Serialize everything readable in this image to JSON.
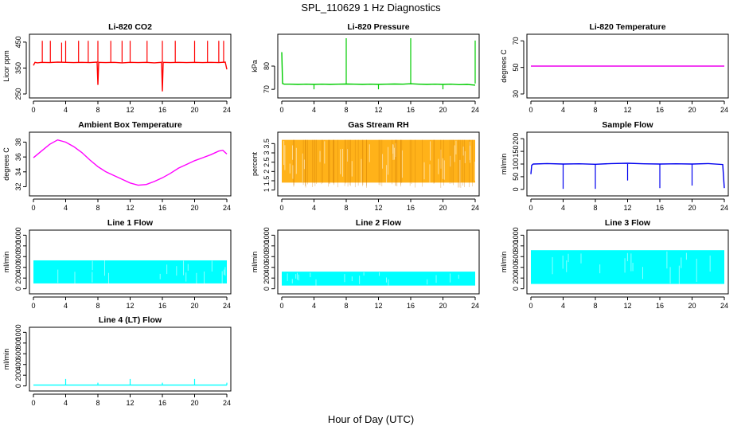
{
  "figure": {
    "title": "SPL_110629  1 Hz Diagnostics",
    "xlabel": "Hour of Day (UTC)"
  },
  "chart_data": [
    {
      "type": "line",
      "title": "Li-820 CO2",
      "ylabel": "Licor ppm",
      "color": "#ff0000",
      "xlim": [
        0,
        24
      ],
      "xticks": [
        0,
        4,
        8,
        12,
        16,
        20,
        24
      ],
      "ylim": [
        250,
        465
      ],
      "yticks": [
        250,
        350,
        450
      ],
      "x": [
        0,
        0.2,
        0.5,
        1,
        2,
        3,
        4,
        5,
        6,
        7,
        7.9,
        8,
        8.1,
        9,
        10,
        11,
        12,
        13,
        14,
        15,
        15.9,
        16,
        16.1,
        17,
        18,
        19,
        20,
        21,
        22,
        23,
        23.8,
        24
      ],
      "y": [
        360,
        372,
        370,
        372,
        371,
        373,
        372,
        371,
        372,
        371,
        373,
        285,
        372,
        371,
        372,
        370,
        372,
        371,
        372,
        370,
        372,
        260,
        372,
        371,
        372,
        371,
        372,
        371,
        372,
        371,
        373,
        345
      ],
      "spikes_x": [
        1.1,
        2.1,
        3.5,
        4.0,
        5.6,
        6.8,
        8.0,
        9.6,
        11.0,
        12.0,
        14.1,
        16.0,
        17.6,
        20.0,
        21.6,
        23.0,
        23.6
      ],
      "spikes_y": [
        455,
        455,
        448,
        455,
        455,
        455,
        455,
        455,
        455,
        455,
        455,
        455,
        455,
        455,
        455,
        455,
        455
      ]
    },
    {
      "type": "line",
      "title": "Li-820 Pressure",
      "ylabel": "kPa",
      "color": "#00cc00",
      "xlim": [
        0,
        24
      ],
      "xticks": [
        0,
        4,
        8,
        12,
        16,
        20,
        24
      ],
      "ylim": [
        68,
        92
      ],
      "yticks": [
        70,
        80
      ],
      "x": [
        0,
        0.1,
        0.3,
        1,
        2,
        3,
        4,
        5,
        6,
        7,
        8,
        9,
        10,
        11,
        12,
        13,
        14,
        15,
        16,
        17,
        18,
        19,
        20,
        21,
        22,
        23,
        24
      ],
      "y": [
        86,
        72.5,
        72.2,
        72.2,
        72.1,
        72.2,
        72.1,
        72.2,
        72.1,
        72.2,
        72.3,
        72.2,
        72.1,
        72.2,
        72.1,
        72.2,
        72.3,
        72.2,
        72.4,
        72.2,
        72.1,
        72.2,
        72.1,
        72.2,
        72.0,
        72.1,
        71.8
      ],
      "spikes_x": [
        8,
        16,
        24
      ],
      "spikes_y": [
        92,
        92,
        91
      ],
      "dips_x": [
        4,
        12,
        20
      ],
      "dips_y": [
        70,
        70,
        70
      ]
    },
    {
      "type": "line",
      "title": "Li-820 Temperature",
      "ylabel": "degrees C",
      "color": "#ee00ee",
      "xlim": [
        0,
        24
      ],
      "xticks": [
        0,
        4,
        8,
        12,
        16,
        20,
        24
      ],
      "ylim": [
        30,
        72
      ],
      "yticks": [
        30,
        50,
        70
      ],
      "x": [
        0,
        24
      ],
      "y": [
        51,
        51
      ]
    },
    {
      "type": "line",
      "title": "Ambient Box Temperature",
      "ylabel": "degrees C",
      "color": "#ff00ff",
      "xlim": [
        0,
        24
      ],
      "xticks": [
        0,
        4,
        8,
        12,
        16,
        20,
        24
      ],
      "ylim": [
        31.3,
        38.8
      ],
      "yticks": [
        32,
        34,
        36,
        38
      ],
      "x": [
        0,
        1,
        2,
        3,
        4,
        5,
        6,
        7,
        8,
        9,
        10,
        11,
        12,
        13,
        14,
        15,
        16,
        17,
        18,
        19,
        20,
        21,
        22,
        23,
        23.5,
        24
      ],
      "y": [
        35.9,
        36.8,
        37.7,
        38.3,
        38.0,
        37.4,
        36.6,
        35.6,
        34.7,
        34.0,
        33.5,
        33.0,
        32.5,
        32.2,
        32.3,
        32.7,
        33.2,
        33.8,
        34.5,
        35.0,
        35.5,
        35.9,
        36.3,
        36.8,
        36.9,
        36.4
      ]
    },
    {
      "type": "line",
      "title": "Gas Stream RH",
      "ylabel": "percent",
      "color": "#ffaa00",
      "xlim": [
        0,
        24
      ],
      "xticks": [
        0,
        4,
        8,
        12,
        16,
        20,
        24
      ],
      "ylim": [
        0.9,
        3.9
      ],
      "yticks": [
        1.0,
        1.5,
        2.0,
        2.5,
        3.0,
        3.5
      ],
      "x": [
        0,
        24
      ],
      "band_upper": 3.7,
      "band_lower": 1.4
    },
    {
      "type": "line",
      "title": "Sample Flow",
      "ylabel": "ml/min",
      "color": "#0000ee",
      "xlim": [
        0,
        24
      ],
      "xticks": [
        0,
        4,
        8,
        12,
        16,
        20,
        24
      ],
      "ylim": [
        -10,
        210
      ],
      "yticks": [
        0,
        50,
        100,
        150,
        200
      ],
      "x": [
        0,
        0.1,
        0.3,
        2,
        4,
        6,
        8,
        10,
        12,
        14,
        16,
        18,
        20,
        22,
        23.8,
        24
      ],
      "y": [
        60,
        95,
        100,
        102,
        100,
        101,
        99,
        102,
        103,
        101,
        100,
        101,
        100,
        102,
        98,
        5
      ],
      "dips_x": [
        4,
        8,
        12,
        16,
        20
      ],
      "dips_y": [
        2,
        2,
        35,
        5,
        15
      ]
    },
    {
      "type": "area",
      "title": "Line 1 Flow",
      "ylabel": "ml/min",
      "color": "#00ffff",
      "xlim": [
        0,
        24
      ],
      "xticks": [
        0,
        4,
        8,
        12,
        16,
        20,
        24
      ],
      "ylim": [
        -20,
        1020
      ],
      "yticks": [
        0,
        200,
        400,
        600,
        800,
        1000
      ],
      "x": [
        0,
        24
      ],
      "band_upper": 530,
      "band_lower": 100
    },
    {
      "type": "area",
      "title": "Line 2 Flow",
      "ylabel": "ml/min",
      "color": "#00ffff",
      "xlim": [
        0,
        24
      ],
      "xticks": [
        0,
        4,
        8,
        12,
        16,
        20,
        24
      ],
      "ylim": [
        -20,
        1020
      ],
      "yticks": [
        0,
        200,
        400,
        600,
        800,
        1000
      ],
      "x": [
        0,
        24
      ],
      "band_upper": 320,
      "band_lower": 60
    },
    {
      "type": "area",
      "title": "Line 3 Flow",
      "ylabel": "ml/min",
      "color": "#00ffff",
      "xlim": [
        0,
        24
      ],
      "xticks": [
        0,
        4,
        8,
        12,
        16,
        20,
        24
      ],
      "ylim": [
        -20,
        1020
      ],
      "yticks": [
        0,
        200,
        400,
        600,
        800,
        1000
      ],
      "x": [
        0,
        24
      ],
      "band_upper": 720,
      "band_lower": 90
    },
    {
      "type": "line",
      "title": "Line 4 (LT) Flow",
      "ylabel": "ml/min",
      "color": "#00ffff",
      "xlim": [
        0,
        24
      ],
      "xticks": [
        0,
        4,
        8,
        12,
        16,
        20,
        24
      ],
      "ylim": [
        -20,
        1020
      ],
      "yticks": [
        0,
        200,
        400,
        600,
        800,
        1000
      ],
      "x": [
        0,
        24
      ],
      "y": [
        15,
        15
      ],
      "spikes_x": [
        4,
        8,
        12,
        16,
        20,
        24
      ],
      "spikes_y": [
        130,
        60,
        130,
        60,
        130,
        60
      ]
    }
  ]
}
